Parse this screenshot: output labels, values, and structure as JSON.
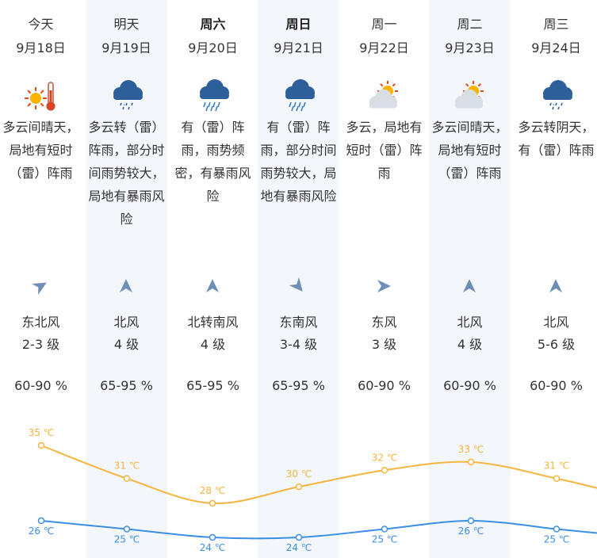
{
  "days": [
    {
      "weekday": "今天",
      "bold": false,
      "date": "9月18日",
      "icon": "sun-thermometer-icon",
      "desc": "多云间晴天，局地有短时（雷）阵雨",
      "wind_dir": "东北风",
      "wind_level": "2-3 级",
      "humidity": "60-90 %",
      "high": "35 ℃",
      "low": "26 ℃",
      "arrow_angle": 240
    },
    {
      "weekday": "明天",
      "bold": false,
      "date": "9月19日",
      "icon": "thunder-rain-cloud-icon",
      "desc": "多云转（雷）阵雨，部分时间雨势较大，局地有暴雨风险",
      "wind_dir": "北风",
      "wind_level": "4 级",
      "humidity": "65-95 %",
      "high": "31 ℃",
      "low": "25 ℃",
      "arrow_angle": 180
    },
    {
      "weekday": "周六",
      "bold": true,
      "date": "9月20日",
      "icon": "heavy-rain-cloud-icon",
      "desc": "有（雷）阵雨，雨势频密，有暴雨风险",
      "wind_dir": "北转南风",
      "wind_level": "4 级",
      "humidity": "65-95 %",
      "high": "28 ℃",
      "low": "24 ℃",
      "arrow_angle": 180
    },
    {
      "weekday": "周日",
      "bold": true,
      "date": "9月21日",
      "icon": "heavy-rain-cloud-icon",
      "desc": "有（雷）阵雨，部分时间雨势较大，局地有暴雨风险",
      "wind_dir": "东南风",
      "wind_level": "3-4 级",
      "humidity": "65-95 %",
      "high": "30 ℃",
      "low": "24 ℃",
      "arrow_angle": 320
    },
    {
      "weekday": "周一",
      "bold": false,
      "date": "9月22日",
      "icon": "sun-behind-cloud-icon",
      "desc": "多云，局地有短时（雷）阵雨",
      "wind_dir": "东风",
      "wind_level": "3 级",
      "humidity": "60-90 %",
      "high": "32 ℃",
      "low": "25 ℃",
      "arrow_angle": 270
    },
    {
      "weekday": "周二",
      "bold": false,
      "date": "9月23日",
      "icon": "sun-behind-cloud-icon",
      "desc": "多云间晴天，局地有短时（雷）阵雨",
      "wind_dir": "北风",
      "wind_level": "4 级",
      "humidity": "60-90 %",
      "high": "33 ℃",
      "low": "26 ℃",
      "arrow_angle": 180
    },
    {
      "weekday": "周三",
      "bold": false,
      "date": "9月24日",
      "icon": "thunder-rain-cloud-icon",
      "desc": "多云转阴天，有（雷）阵雨",
      "wind_dir": "北风",
      "wind_level": "5-6 级",
      "humidity": "60-90 %",
      "high": "31 ℃",
      "low": "25 ℃",
      "arrow_angle": 180
    }
  ],
  "colors": {
    "high": "#f5b53f",
    "low": "#3a8ee6",
    "arrow": "#6e8fb5",
    "shade": "#f3f6fb",
    "rain": "#2f6fb5"
  },
  "chart_data": {
    "type": "line",
    "categories": [
      "9月18日",
      "9月19日",
      "9月20日",
      "9月21日",
      "9月22日",
      "9月23日",
      "9月24日"
    ],
    "series": [
      {
        "name": "",
        "values": [
          35,
          31,
          28,
          30,
          32,
          33,
          31
        ]
      },
      {
        "name": "",
        "values": [
          26,
          25,
          24,
          24,
          25,
          26,
          25
        ]
      }
    ],
    "unit": "℃"
  }
}
